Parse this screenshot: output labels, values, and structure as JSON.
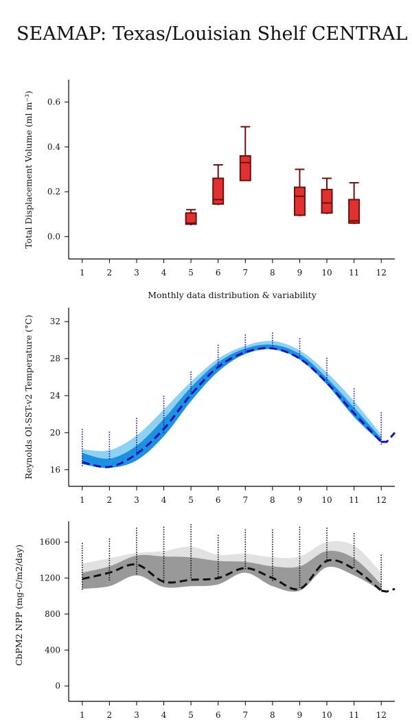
{
  "title": "SEAMAP: Texas/Louisian Shelf CENTRAL",
  "chart_data": [
    {
      "type": "box",
      "ylabel": "Total Displacement Volume (ml m⁻³)",
      "xlabel": "Monthly data distribution & variability",
      "xticks": [
        "1",
        "2",
        "3",
        "4",
        "5",
        "6",
        "7",
        "8",
        "9",
        "10",
        "11",
        "12"
      ],
      "yticks": [
        "0.0",
        "0.2",
        "0.4",
        "0.6"
      ],
      "ylim": [
        -0.1,
        0.7
      ],
      "xlim": [
        0.5,
        12.5
      ],
      "box_color": "#e03030",
      "edge_color": "#6b0f0f",
      "boxes": [
        {
          "x": 5,
          "whisker_low": 0.05,
          "q1": 0.055,
          "median": 0.06,
          "q3": 0.105,
          "whisker_high": 0.12
        },
        {
          "x": 6,
          "whisker_low": 0.14,
          "q1": 0.145,
          "median": 0.165,
          "q3": 0.26,
          "whisker_high": 0.32
        },
        {
          "x": 7,
          "whisker_low": 0.25,
          "q1": 0.25,
          "median": 0.33,
          "q3": 0.36,
          "whisker_high": 0.49
        },
        {
          "x": 9,
          "whisker_low": 0.09,
          "q1": 0.095,
          "median": 0.18,
          "q3": 0.22,
          "whisker_high": 0.3
        },
        {
          "x": 10,
          "whisker_low": 0.1,
          "q1": 0.105,
          "median": 0.15,
          "q3": 0.21,
          "whisker_high": 0.26
        },
        {
          "x": 11,
          "whisker_low": 0.055,
          "q1": 0.06,
          "median": 0.07,
          "q3": 0.165,
          "whisker_high": 0.24
        }
      ]
    },
    {
      "type": "area",
      "ylabel": "Reynolds OI-SST-v2 Temperature (°C)",
      "xticks": [
        "1",
        "2",
        "3",
        "4",
        "5",
        "6",
        "7",
        "8",
        "9",
        "10",
        "11",
        "12"
      ],
      "yticks": [
        "16",
        "20",
        "24",
        "28",
        "32"
      ],
      "ylim": [
        14.2,
        33.5
      ],
      "xlim": [
        0.5,
        12.5
      ],
      "outer_color": "#8fd0f5",
      "inner_color": "#1e90e0",
      "line_color": "#1414b4",
      "x": [
        1,
        2,
        3,
        4,
        5,
        6,
        7,
        8,
        9,
        10,
        11,
        12
      ],
      "outer_low": [
        16.7,
        16.2,
        17.2,
        20.0,
        23.8,
        27.0,
        28.7,
        29.1,
        28.0,
        25.4,
        22.0,
        19.0
      ],
      "outer_high": [
        18.2,
        18.1,
        19.7,
        22.5,
        25.5,
        28.0,
        29.4,
        29.9,
        28.9,
        26.5,
        23.4,
        19.8
      ],
      "inner_low": [
        16.6,
        16.2,
        17.0,
        19.6,
        23.4,
        26.6,
        28.5,
        29.0,
        27.9,
        25.2,
        21.7,
        18.9
      ],
      "inner_high": [
        17.8,
        17.2,
        18.6,
        21.5,
        24.9,
        27.6,
        29.1,
        29.5,
        28.5,
        25.9,
        22.7,
        19.4
      ],
      "mean": [
        16.8,
        16.3,
        17.7,
        20.4,
        24.1,
        27.1,
        28.7,
        29.1,
        28.0,
        25.4,
        22.1,
        19.0
      ],
      "mean_ext": [
        [
          12.2,
          19.0
        ],
        [
          12.5,
          20.0
        ]
      ],
      "points": [
        {
          "x": 1,
          "ymin": 16.5,
          "ymax": 20.4
        },
        {
          "x": 2,
          "ymin": 17.0,
          "ymax": 20.1
        },
        {
          "x": 3,
          "ymin": 17.5,
          "ymax": 21.6
        },
        {
          "x": 4,
          "ymin": 20.0,
          "ymax": 24.0
        },
        {
          "x": 5,
          "ymin": 24.2,
          "ymax": 26.6
        },
        {
          "x": 6,
          "ymin": 27.0,
          "ymax": 29.5
        },
        {
          "x": 7,
          "ymin": 28.7,
          "ymax": 30.6
        },
        {
          "x": 8,
          "ymin": 29.0,
          "ymax": 30.8
        },
        {
          "x": 9,
          "ymin": 28.0,
          "ymax": 30.2
        },
        {
          "x": 10,
          "ymin": 25.5,
          "ymax": 28.1
        },
        {
          "x": 11,
          "ymin": 22.5,
          "ymax": 24.8
        },
        {
          "x": 12,
          "ymin": 18.8,
          "ymax": 22.2
        }
      ]
    },
    {
      "type": "area",
      "ylabel": "CbPM2 NPP (mg-C/m2/day)",
      "xticks": [
        "1",
        "2",
        "3",
        "4",
        "5",
        "6",
        "7",
        "8",
        "9",
        "10",
        "11",
        "12"
      ],
      "yticks": [
        "0",
        "400",
        "800",
        "1200",
        "1600"
      ],
      "ylim": [
        -170,
        1830
      ],
      "xlim": [
        0.5,
        12.5
      ],
      "outer_color": "#e1e1e1",
      "inner_color": "#999999",
      "line_color": "#111111",
      "x": [
        1,
        2,
        3,
        4,
        5,
        6,
        7,
        8,
        9,
        10,
        11,
        12
      ],
      "outer_low": [
        1080,
        1110,
        1230,
        1100,
        1110,
        1130,
        1260,
        1110,
        1060,
        1320,
        1230,
        1060
      ],
      "outer_high": [
        1360,
        1420,
        1480,
        1500,
        1550,
        1460,
        1470,
        1430,
        1440,
        1600,
        1560,
        1260
      ],
      "inner_low": [
        1080,
        1110,
        1230,
        1100,
        1110,
        1130,
        1260,
        1110,
        1060,
        1320,
        1230,
        1060
      ],
      "inner_high": [
        1260,
        1330,
        1450,
        1440,
        1430,
        1390,
        1380,
        1330,
        1330,
        1500,
        1420,
        1130
      ],
      "mean": [
        1190,
        1260,
        1350,
        1160,
        1180,
        1200,
        1310,
        1200,
        1080,
        1390,
        1300,
        1060
      ],
      "mean_ext": [
        [
          12.2,
          1050
        ],
        [
          12.5,
          1080
        ]
      ],
      "points": [
        {
          "x": 1,
          "ymin": 1080,
          "ymax": 1590
        },
        {
          "x": 2,
          "ymin": 1160,
          "ymax": 1640
        },
        {
          "x": 3,
          "ymin": 1250,
          "ymax": 1760
        },
        {
          "x": 4,
          "ymin": 1150,
          "ymax": 1770
        },
        {
          "x": 5,
          "ymin": 1200,
          "ymax": 1800
        },
        {
          "x": 6,
          "ymin": 1180,
          "ymax": 1680
        },
        {
          "x": 7,
          "ymin": 1300,
          "ymax": 1740
        },
        {
          "x": 8,
          "ymin": 1160,
          "ymax": 1740
        },
        {
          "x": 9,
          "ymin": 1100,
          "ymax": 1770
        },
        {
          "x": 10,
          "ymin": 1400,
          "ymax": 1760
        },
        {
          "x": 11,
          "ymin": 1300,
          "ymax": 1700
        },
        {
          "x": 12,
          "ymin": 1080,
          "ymax": 1460
        }
      ]
    }
  ]
}
